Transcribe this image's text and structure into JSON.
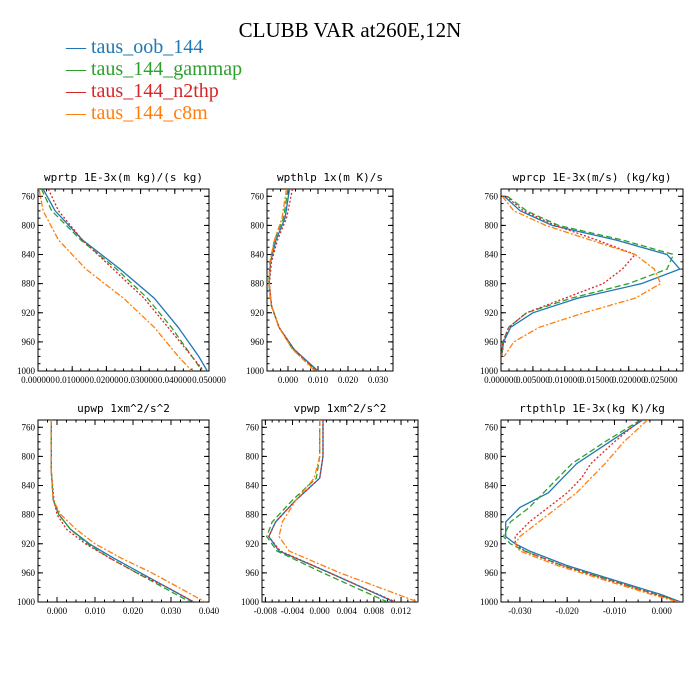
{
  "title": "CLUBB VAR at260E,12N",
  "legend": [
    {
      "label": "taus_oob_144",
      "color": "#1f77b4",
      "dash": "solid"
    },
    {
      "label": "taus_144_gammap",
      "color": "#2ca02c",
      "dash": "dash"
    },
    {
      "label": "taus_144_n2thp",
      "color": "#d62728",
      "dash": "dot"
    },
    {
      "label": "taus_144_c8m",
      "color": "#ff7f0e",
      "dash": "dashdot"
    }
  ],
  "chart_data": [
    {
      "type": "line",
      "title": "wprtp  1E-3x(m kg)/(s kg)",
      "xlim": [
        0,
        0.05
      ],
      "ylim": [
        1000,
        750
      ],
      "xticks": [
        0,
        0.01,
        0.02,
        0.03,
        0.04,
        0.05
      ],
      "xtick_labels": [
        "0.000000",
        "0.010000",
        "0.020000",
        "0.030000",
        "0.040000",
        "0.050000"
      ],
      "yticks": [
        760,
        800,
        840,
        880,
        920,
        960,
        1000
      ],
      "series": [
        {
          "name": "taus_oob_144",
          "y": [
            750,
            780,
            820,
            860,
            900,
            940,
            980,
            1000
          ],
          "x": [
            0.0015,
            0.005,
            0.013,
            0.024,
            0.034,
            0.041,
            0.047,
            0.0495
          ]
        },
        {
          "name": "taus_144_gammap",
          "y": [
            750,
            780,
            820,
            860,
            900,
            940,
            980,
            1000
          ],
          "x": [
            0.001,
            0.004,
            0.0125,
            0.023,
            0.032,
            0.039,
            0.045,
            0.048
          ]
        },
        {
          "name": "taus_144_n2thp",
          "y": [
            750,
            780,
            820,
            860,
            900,
            940,
            980,
            1000
          ],
          "x": [
            0.003,
            0.006,
            0.013,
            0.022,
            0.031,
            0.038,
            0.045,
            0.0485
          ]
        },
        {
          "name": "taus_144_c8m",
          "y": [
            750,
            780,
            820,
            860,
            900,
            940,
            980,
            1000
          ],
          "x": [
            0.0003,
            0.0015,
            0.006,
            0.014,
            0.025,
            0.034,
            0.041,
            0.045
          ]
        }
      ]
    },
    {
      "type": "line",
      "title": "wpthlp  1x(m K)/s",
      "xlim": [
        -0.007,
        0.035
      ],
      "ylim": [
        1000,
        750
      ],
      "xticks": [
        0,
        0.01,
        0.02,
        0.03
      ],
      "xtick_labels": [
        "0.000",
        "0.010",
        "0.020",
        "0.030"
      ],
      "yticks": [
        760,
        800,
        840,
        880,
        920,
        960,
        1000
      ],
      "series": [
        {
          "name": "taus_oob_144",
          "y": [
            750,
            790,
            820,
            850,
            880,
            910,
            940,
            970,
            1000
          ],
          "x": [
            0.0005,
            -0.001,
            -0.004,
            -0.0058,
            -0.0063,
            -0.0055,
            -0.003,
            0.002,
            0.01
          ]
        },
        {
          "name": "taus_144_gammap",
          "y": [
            750,
            790,
            820,
            850,
            880,
            910,
            940,
            970,
            1000
          ],
          "x": [
            0.0,
            -0.0015,
            -0.0045,
            -0.006,
            -0.0064,
            -0.0056,
            -0.003,
            0.0015,
            0.0095
          ]
        },
        {
          "name": "taus_144_n2thp",
          "y": [
            750,
            790,
            820,
            850,
            880,
            910,
            940,
            970,
            1000
          ],
          "x": [
            0.0015,
            -0.0005,
            -0.0035,
            -0.0055,
            -0.0062,
            -0.0055,
            -0.003,
            0.002,
            0.0095
          ]
        },
        {
          "name": "taus_144_c8m",
          "y": [
            750,
            790,
            820,
            850,
            880,
            910,
            940,
            970,
            1000
          ],
          "x": [
            -0.0005,
            -0.002,
            -0.0045,
            -0.006,
            -0.0063,
            -0.0055,
            -0.003,
            0.0015,
            0.009
          ]
        }
      ]
    },
    {
      "type": "line",
      "title": "wprcp  1E-3x(m/s) (kg/kg)",
      "xlim": [
        0,
        0.0285
      ],
      "ylim": [
        1000,
        750
      ],
      "xticks": [
        0,
        0.005,
        0.01,
        0.015,
        0.02,
        0.025
      ],
      "xtick_labels": [
        "0.000000",
        "0.005000",
        "0.010000",
        "0.015000",
        "0.020000",
        "0.025000"
      ],
      "yticks": [
        760,
        800,
        840,
        880,
        920,
        960,
        1000
      ],
      "series": [
        {
          "name": "taus_oob_144",
          "y": [
            760,
            780,
            800,
            820,
            840,
            860,
            880,
            900,
            920,
            940,
            960,
            980
          ],
          "x": [
            0.0005,
            0.003,
            0.008,
            0.018,
            0.026,
            0.028,
            0.022,
            0.012,
            0.005,
            0.0015,
            0.0004,
            0.0001
          ]
        },
        {
          "name": "taus_144_gammap",
          "y": [
            760,
            780,
            800,
            820,
            840,
            860,
            880,
            900,
            920,
            940,
            960,
            980
          ],
          "x": [
            0.001,
            0.004,
            0.009,
            0.019,
            0.027,
            0.026,
            0.02,
            0.011,
            0.004,
            0.0012,
            0.0003,
            0.0001
          ]
        },
        {
          "name": "taus_144_n2thp",
          "y": [
            760,
            780,
            800,
            820,
            840,
            860,
            880,
            900,
            920,
            940,
            960,
            980
          ],
          "x": [
            0.0008,
            0.0035,
            0.0085,
            0.015,
            0.021,
            0.019,
            0.016,
            0.01,
            0.004,
            0.0012,
            0.0003,
            0.0001
          ]
        },
        {
          "name": "taus_144_c8m",
          "y": [
            760,
            780,
            800,
            820,
            840,
            860,
            880,
            900,
            920,
            940,
            960,
            980
          ],
          "x": [
            0.0002,
            0.002,
            0.007,
            0.014,
            0.021,
            0.024,
            0.025,
            0.021,
            0.013,
            0.006,
            0.002,
            0.0005
          ]
        }
      ]
    },
    {
      "type": "line",
      "title": "upwp  1xm^2/s^2",
      "xlim": [
        -0.005,
        0.04
      ],
      "ylim": [
        1000,
        750
      ],
      "xticks": [
        0,
        0.01,
        0.02,
        0.03,
        0.04
      ],
      "xtick_labels": [
        "0.000",
        "0.010",
        "0.020",
        "0.030",
        "0.040"
      ],
      "yticks": [
        760,
        800,
        840,
        880,
        920,
        960,
        1000
      ],
      "series": [
        {
          "name": "taus_oob_144",
          "y": [
            750,
            820,
            860,
            880,
            900,
            920,
            940,
            960,
            980,
            1000
          ],
          "x": [
            -0.0015,
            -0.0015,
            -0.001,
            0.0005,
            0.0035,
            0.0085,
            0.015,
            0.022,
            0.029,
            0.036
          ]
        },
        {
          "name": "taus_144_gammap",
          "y": [
            750,
            820,
            860,
            880,
            900,
            920,
            940,
            960,
            980,
            1000
          ],
          "x": [
            -0.0015,
            -0.0015,
            -0.001,
            0.0005,
            0.0035,
            0.008,
            0.014,
            0.021,
            0.028,
            0.035
          ]
        },
        {
          "name": "taus_144_n2thp",
          "y": [
            750,
            820,
            860,
            880,
            900,
            920,
            940,
            960,
            980,
            1000
          ],
          "x": [
            -0.0015,
            -0.0015,
            -0.0008,
            0.0,
            0.0025,
            0.0075,
            0.014,
            0.021,
            0.029,
            0.036
          ]
        },
        {
          "name": "taus_144_c8m",
          "y": [
            750,
            820,
            860,
            880,
            900,
            920,
            940,
            960,
            980,
            1000
          ],
          "x": [
            -0.0015,
            -0.0015,
            -0.001,
            0.001,
            0.005,
            0.01,
            0.017,
            0.025,
            0.032,
            0.039
          ]
        }
      ]
    },
    {
      "type": "line",
      "title": "vpwp  1xm^2/s^2",
      "xlim": [
        -0.0085,
        0.0145
      ],
      "ylim": [
        1000,
        750
      ],
      "xticks": [
        -0.008,
        -0.004,
        0,
        0.004,
        0.008,
        0.012
      ],
      "xtick_labels": [
        "-0.008",
        "-0.004",
        "0.000",
        "0.004",
        "0.008",
        "0.012"
      ],
      "yticks": [
        760,
        800,
        840,
        880,
        920,
        960,
        1000
      ],
      "series": [
        {
          "name": "taus_oob_144",
          "y": [
            750,
            800,
            830,
            860,
            890,
            910,
            930,
            960,
            1000
          ],
          "x": [
            0.0005,
            0.0005,
            0.0,
            -0.0035,
            -0.0065,
            -0.0075,
            -0.006,
            0.0015,
            0.011
          ]
        },
        {
          "name": "taus_144_gammap",
          "y": [
            750,
            800,
            830,
            860,
            890,
            910,
            930,
            960,
            1000
          ],
          "x": [
            0.0,
            0.0,
            -0.0005,
            -0.004,
            -0.007,
            -0.0078,
            -0.0063,
            0.0005,
            0.01
          ]
        },
        {
          "name": "taus_144_n2thp",
          "y": [
            750,
            800,
            830,
            860,
            890,
            910,
            930,
            960,
            1000
          ],
          "x": [
            0.0005,
            0.0005,
            0.0,
            -0.0035,
            -0.0065,
            -0.0075,
            -0.0058,
            0.0015,
            0.0112
          ]
        },
        {
          "name": "taus_144_c8m",
          "y": [
            750,
            800,
            830,
            860,
            890,
            910,
            930,
            960,
            1000
          ],
          "x": [
            0.0,
            0.0,
            -0.0008,
            -0.0035,
            -0.0055,
            -0.006,
            -0.0045,
            0.003,
            0.0145
          ]
        }
      ]
    },
    {
      "type": "line",
      "title": "rtpthlp  1E-3x(kg K)/kg",
      "xlim": [
        -0.034,
        0.0045
      ],
      "ylim": [
        1000,
        750
      ],
      "xticks": [
        -0.03,
        -0.02,
        -0.01,
        0
      ],
      "xtick_labels": [
        "-0.030",
        "-0.020",
        "-0.010",
        "0.000"
      ],
      "yticks": [
        760,
        800,
        840,
        880,
        920,
        960,
        1000
      ],
      "series": [
        {
          "name": "taus_oob_144",
          "y": [
            750,
            780,
            810,
            830,
            850,
            870,
            890,
            910,
            920,
            930,
            950,
            970,
            990,
            1000
          ],
          "x": [
            -0.004,
            -0.011,
            -0.018,
            -0.021,
            -0.024,
            -0.03,
            -0.033,
            -0.033,
            -0.031,
            -0.028,
            -0.02,
            -0.01,
            0.0,
            0.004
          ]
        },
        {
          "name": "taus_144_gammap",
          "y": [
            750,
            780,
            810,
            830,
            850,
            870,
            890,
            910,
            920,
            930,
            950,
            970,
            990,
            1000
          ],
          "x": [
            -0.0045,
            -0.012,
            -0.019,
            -0.022,
            -0.025,
            -0.028,
            -0.032,
            -0.0335,
            -0.032,
            -0.029,
            -0.021,
            -0.011,
            -0.001,
            0.004
          ]
        },
        {
          "name": "taus_144_n2thp",
          "y": [
            750,
            780,
            810,
            830,
            850,
            870,
            890,
            910,
            920,
            930,
            950,
            970,
            990,
            1000
          ],
          "x": [
            -0.0045,
            -0.01,
            -0.015,
            -0.017,
            -0.02,
            -0.024,
            -0.028,
            -0.031,
            -0.031,
            -0.029,
            -0.021,
            -0.011,
            -0.001,
            0.004
          ]
        },
        {
          "name": "taus_144_c8m",
          "y": [
            750,
            780,
            810,
            830,
            850,
            870,
            890,
            910,
            920,
            930,
            950,
            970,
            990,
            1000
          ],
          "x": [
            -0.003,
            -0.008,
            -0.012,
            -0.015,
            -0.018,
            -0.022,
            -0.026,
            -0.03,
            -0.031,
            -0.03,
            -0.022,
            -0.012,
            -0.002,
            0.0035
          ]
        }
      ]
    }
  ]
}
